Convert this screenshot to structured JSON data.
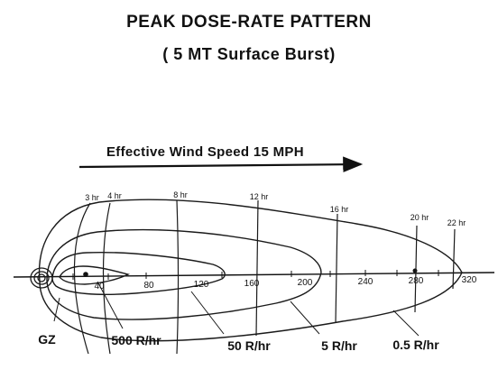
{
  "title": "PEAK DOSE-RATE PATTERN",
  "subtitle": "( 5 MT Surface Burst)",
  "wind_label": "Effective Wind Speed 15 MPH",
  "gz_label": "GZ",
  "axis_ticks": [
    "40",
    "80",
    "120",
    "160",
    "200",
    "240",
    "280",
    "320"
  ],
  "time_labels": [
    "3 hr",
    "4 hr",
    "8 hr",
    "12 hr",
    "16 hr",
    "20 hr",
    "22 hr"
  ],
  "dose_labels": [
    "500 R/hr",
    "50 R/hr",
    "5 R/hr",
    "0.5 R/hr"
  ],
  "colors": {
    "ink": "#111111",
    "background": "#ffffff"
  }
}
